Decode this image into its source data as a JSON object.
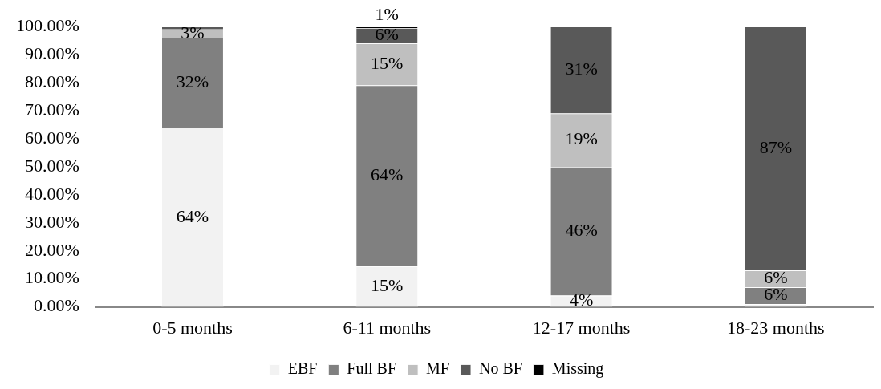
{
  "chart_data": {
    "type": "bar",
    "stacked": true,
    "categories": [
      "0-5 months",
      "6-11 months",
      "12-17 months",
      "18-23 months"
    ],
    "series": [
      {
        "name": "EBF",
        "color": "#f2f2f2",
        "values": [
          64,
          14.5,
          4,
          1
        ],
        "value_labels": [
          "64%",
          "15%",
          "4%",
          null
        ]
      },
      {
        "name": "Full BF",
        "color": "#808080",
        "values": [
          32,
          64.5,
          46,
          6
        ],
        "value_labels": [
          "32%",
          "64%",
          "46%",
          "6%"
        ]
      },
      {
        "name": "MF",
        "color": "#bfbfbf",
        "values": [
          3,
          15,
          19,
          6
        ],
        "value_labels": [
          "3%",
          "15%",
          "19%",
          "6%"
        ]
      },
      {
        "name": "No BF",
        "color": "#595959",
        "values": [
          1,
          5.5,
          31,
          87
        ],
        "value_labels": [
          null,
          "6%",
          "31%",
          "87%"
        ]
      },
      {
        "name": "Missing",
        "color": "#000000",
        "values": [
          0,
          0.5,
          0,
          0
        ],
        "value_labels": [
          null,
          "1%",
          null,
          null
        ]
      }
    ],
    "ylim": [
      0,
      100
    ],
    "yticks": [
      {
        "value": 0,
        "label": "0.00%"
      },
      {
        "value": 10,
        "label": "10.00%"
      },
      {
        "value": 20,
        "label": "20.00%"
      },
      {
        "value": 30,
        "label": "30.00%"
      },
      {
        "value": 40,
        "label": "40.00%"
      },
      {
        "value": 50,
        "label": "50.00%"
      },
      {
        "value": 60,
        "label": "60.00%"
      },
      {
        "value": 70,
        "label": "70.00%"
      },
      {
        "value": 80,
        "label": "80.00%"
      },
      {
        "value": 90,
        "label": "90.00%"
      },
      {
        "value": 100,
        "label": "100.00%"
      }
    ],
    "grid": false,
    "legend": "bottom"
  }
}
